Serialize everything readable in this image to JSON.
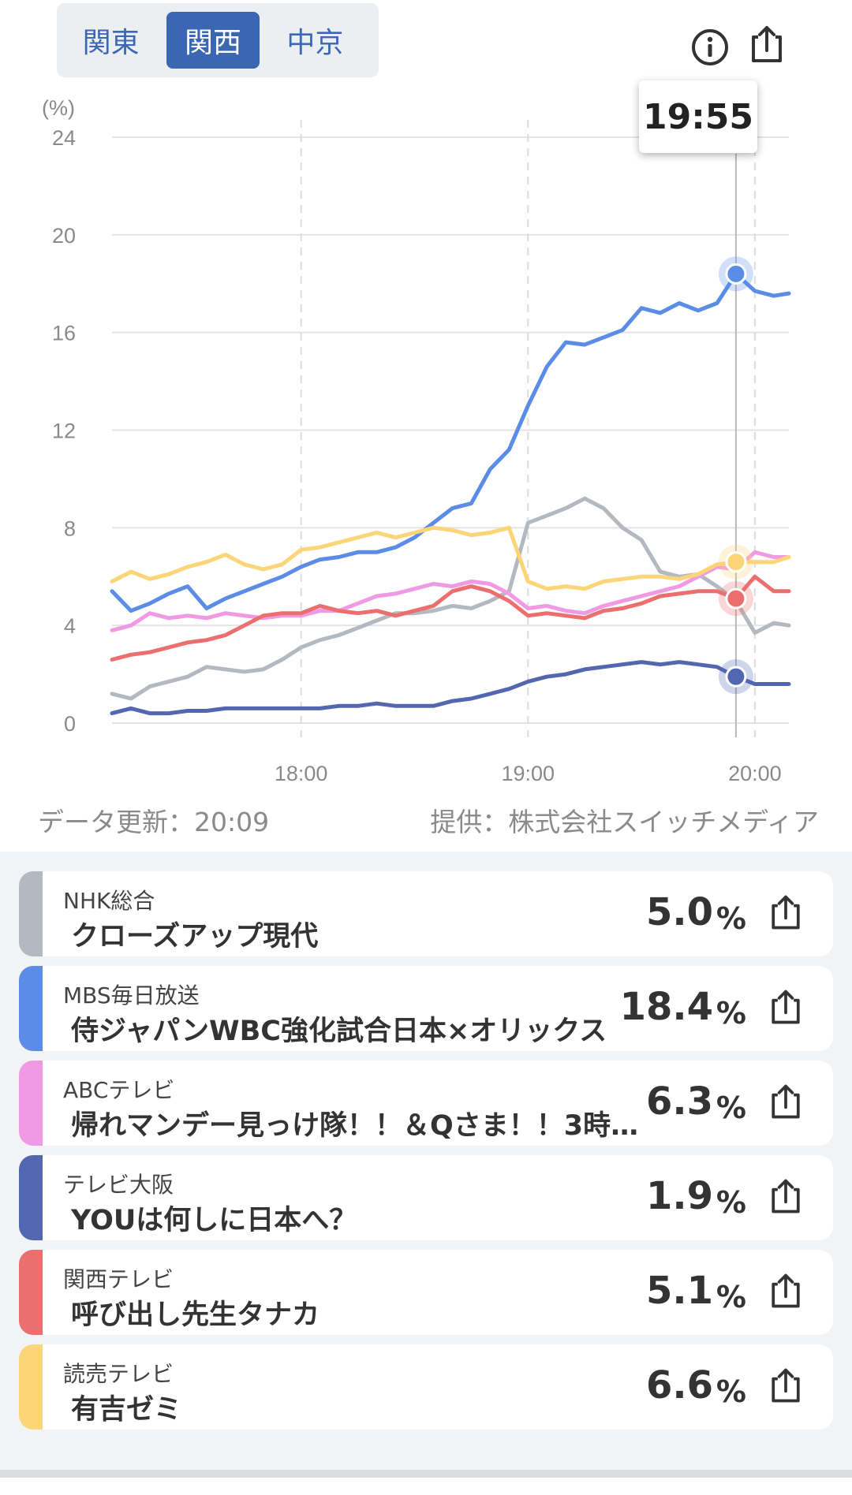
{
  "region_tabs": [
    {
      "label": "関東",
      "active": false
    },
    {
      "label": "関西",
      "active": true
    },
    {
      "label": "中京",
      "active": false
    }
  ],
  "icons": {
    "info": "info-icon",
    "share": "share-icon"
  },
  "tooltip_time": "19:55",
  "chart_data": {
    "type": "line",
    "ylabel": "(%)",
    "ylim": [
      0,
      24
    ],
    "y_ticks": [
      "0",
      "4",
      "8",
      "12",
      "16",
      "20",
      "24"
    ],
    "x_ticks": [
      "18:00",
      "19:00",
      "20:00"
    ],
    "x_start": "17:10",
    "x_end": "20:09",
    "cursor_time": "19:55",
    "series": [
      {
        "key": "nhk",
        "color": "#b4b9c1",
        "points": [
          [
            "17:10",
            1.2
          ],
          [
            "17:15",
            1.0
          ],
          [
            "17:20",
            1.5
          ],
          [
            "17:25",
            1.7
          ],
          [
            "17:30",
            1.9
          ],
          [
            "17:35",
            2.3
          ],
          [
            "17:40",
            2.2
          ],
          [
            "17:45",
            2.1
          ],
          [
            "17:50",
            2.2
          ],
          [
            "17:55",
            2.6
          ],
          [
            "18:00",
            3.1
          ],
          [
            "18:05",
            3.4
          ],
          [
            "18:10",
            3.6
          ],
          [
            "18:15",
            3.9
          ],
          [
            "18:20",
            4.2
          ],
          [
            "18:25",
            4.5
          ],
          [
            "18:30",
            4.5
          ],
          [
            "18:35",
            4.6
          ],
          [
            "18:40",
            4.8
          ],
          [
            "18:45",
            4.7
          ],
          [
            "18:50",
            5.0
          ],
          [
            "18:55",
            5.4
          ],
          [
            "19:00",
            8.2
          ],
          [
            "19:05",
            8.5
          ],
          [
            "19:10",
            8.8
          ],
          [
            "19:15",
            9.2
          ],
          [
            "19:20",
            8.8
          ],
          [
            "19:25",
            8.0
          ],
          [
            "19:30",
            7.5
          ],
          [
            "19:35",
            6.2
          ],
          [
            "19:40",
            6.0
          ],
          [
            "19:45",
            6.1
          ],
          [
            "19:50",
            5.6
          ],
          [
            "19:55",
            5.0
          ],
          [
            "20:00",
            3.7
          ],
          [
            "20:05",
            4.1
          ],
          [
            "20:09",
            4.0
          ]
        ]
      },
      {
        "key": "mbs",
        "color": "#5b8ce6",
        "points": [
          [
            "17:10",
            5.4
          ],
          [
            "17:15",
            4.6
          ],
          [
            "17:20",
            4.9
          ],
          [
            "17:25",
            5.3
          ],
          [
            "17:30",
            5.6
          ],
          [
            "17:35",
            4.7
          ],
          [
            "17:40",
            5.1
          ],
          [
            "17:45",
            5.4
          ],
          [
            "17:50",
            5.7
          ],
          [
            "17:55",
            6.0
          ],
          [
            "18:00",
            6.4
          ],
          [
            "18:05",
            6.7
          ],
          [
            "18:10",
            6.8
          ],
          [
            "18:15",
            7.0
          ],
          [
            "18:20",
            7.0
          ],
          [
            "18:25",
            7.2
          ],
          [
            "18:30",
            7.6
          ],
          [
            "18:35",
            8.2
          ],
          [
            "18:40",
            8.8
          ],
          [
            "18:45",
            9.0
          ],
          [
            "18:50",
            10.4
          ],
          [
            "18:55",
            11.2
          ],
          [
            "19:00",
            13.0
          ],
          [
            "19:05",
            14.6
          ],
          [
            "19:10",
            15.6
          ],
          [
            "19:15",
            15.5
          ],
          [
            "19:20",
            15.8
          ],
          [
            "19:25",
            16.1
          ],
          [
            "19:30",
            17.0
          ],
          [
            "19:35",
            16.8
          ],
          [
            "19:40",
            17.2
          ],
          [
            "19:45",
            16.9
          ],
          [
            "19:50",
            17.2
          ],
          [
            "19:55",
            18.4
          ],
          [
            "20:00",
            17.7
          ],
          [
            "20:05",
            17.5
          ],
          [
            "20:09",
            17.6
          ]
        ]
      },
      {
        "key": "abc",
        "color": "#f09ae3",
        "points": [
          [
            "17:10",
            3.8
          ],
          [
            "17:15",
            4.0
          ],
          [
            "17:20",
            4.5
          ],
          [
            "17:25",
            4.3
          ],
          [
            "17:30",
            4.4
          ],
          [
            "17:35",
            4.3
          ],
          [
            "17:40",
            4.5
          ],
          [
            "17:45",
            4.4
          ],
          [
            "17:50",
            4.3
          ],
          [
            "17:55",
            4.4
          ],
          [
            "18:00",
            4.4
          ],
          [
            "18:05",
            4.6
          ],
          [
            "18:10",
            4.6
          ],
          [
            "18:15",
            4.9
          ],
          [
            "18:20",
            5.2
          ],
          [
            "18:25",
            5.3
          ],
          [
            "18:30",
            5.5
          ],
          [
            "18:35",
            5.7
          ],
          [
            "18:40",
            5.6
          ],
          [
            "18:45",
            5.8
          ],
          [
            "18:50",
            5.7
          ],
          [
            "18:55",
            5.3
          ],
          [
            "19:00",
            4.7
          ],
          [
            "19:05",
            4.8
          ],
          [
            "19:10",
            4.6
          ],
          [
            "19:15",
            4.5
          ],
          [
            "19:20",
            4.8
          ],
          [
            "19:25",
            5.0
          ],
          [
            "19:30",
            5.2
          ],
          [
            "19:35",
            5.4
          ],
          [
            "19:40",
            5.6
          ],
          [
            "19:45",
            6.0
          ],
          [
            "19:50",
            6.4
          ],
          [
            "19:55",
            6.3
          ],
          [
            "20:00",
            7.0
          ],
          [
            "20:05",
            6.8
          ],
          [
            "20:09",
            6.8
          ]
        ]
      },
      {
        "key": "tvo",
        "color": "#5367b1",
        "points": [
          [
            "17:10",
            0.4
          ],
          [
            "17:15",
            0.6
          ],
          [
            "17:20",
            0.4
          ],
          [
            "17:25",
            0.4
          ],
          [
            "17:30",
            0.5
          ],
          [
            "17:35",
            0.5
          ],
          [
            "17:40",
            0.6
          ],
          [
            "17:45",
            0.6
          ],
          [
            "17:50",
            0.6
          ],
          [
            "17:55",
            0.6
          ],
          [
            "18:00",
            0.6
          ],
          [
            "18:05",
            0.6
          ],
          [
            "18:10",
            0.7
          ],
          [
            "18:15",
            0.7
          ],
          [
            "18:20",
            0.8
          ],
          [
            "18:25",
            0.7
          ],
          [
            "18:30",
            0.7
          ],
          [
            "18:35",
            0.7
          ],
          [
            "18:40",
            0.9
          ],
          [
            "18:45",
            1.0
          ],
          [
            "18:50",
            1.2
          ],
          [
            "18:55",
            1.4
          ],
          [
            "19:00",
            1.7
          ],
          [
            "19:05",
            1.9
          ],
          [
            "19:10",
            2.0
          ],
          [
            "19:15",
            2.2
          ],
          [
            "19:20",
            2.3
          ],
          [
            "19:25",
            2.4
          ],
          [
            "19:30",
            2.5
          ],
          [
            "19:35",
            2.4
          ],
          [
            "19:40",
            2.5
          ],
          [
            "19:45",
            2.4
          ],
          [
            "19:50",
            2.3
          ],
          [
            "19:55",
            1.9
          ],
          [
            "20:00",
            1.6
          ],
          [
            "20:05",
            1.6
          ],
          [
            "20:09",
            1.6
          ]
        ]
      },
      {
        "key": "ktv",
        "color": "#ec6f6f",
        "points": [
          [
            "17:10",
            2.6
          ],
          [
            "17:15",
            2.8
          ],
          [
            "17:20",
            2.9
          ],
          [
            "17:25",
            3.1
          ],
          [
            "17:30",
            3.3
          ],
          [
            "17:35",
            3.4
          ],
          [
            "17:40",
            3.6
          ],
          [
            "17:45",
            4.0
          ],
          [
            "17:50",
            4.4
          ],
          [
            "17:55",
            4.5
          ],
          [
            "18:00",
            4.5
          ],
          [
            "18:05",
            4.8
          ],
          [
            "18:10",
            4.6
          ],
          [
            "18:15",
            4.5
          ],
          [
            "18:20",
            4.6
          ],
          [
            "18:25",
            4.4
          ],
          [
            "18:30",
            4.6
          ],
          [
            "18:35",
            4.8
          ],
          [
            "18:40",
            5.4
          ],
          [
            "18:45",
            5.6
          ],
          [
            "18:50",
            5.4
          ],
          [
            "18:55",
            5.0
          ],
          [
            "19:00",
            4.4
          ],
          [
            "19:05",
            4.5
          ],
          [
            "19:10",
            4.4
          ],
          [
            "19:15",
            4.3
          ],
          [
            "19:20",
            4.6
          ],
          [
            "19:25",
            4.7
          ],
          [
            "19:30",
            4.9
          ],
          [
            "19:35",
            5.2
          ],
          [
            "19:40",
            5.3
          ],
          [
            "19:45",
            5.4
          ],
          [
            "19:50",
            5.4
          ],
          [
            "19:55",
            5.1
          ],
          [
            "20:00",
            6.0
          ],
          [
            "20:05",
            5.4
          ],
          [
            "20:09",
            5.4
          ]
        ]
      },
      {
        "key": "ytv",
        "color": "#fbd577",
        "points": [
          [
            "17:10",
            5.8
          ],
          [
            "17:15",
            6.2
          ],
          [
            "17:20",
            5.9
          ],
          [
            "17:25",
            6.1
          ],
          [
            "17:30",
            6.4
          ],
          [
            "17:35",
            6.6
          ],
          [
            "17:40",
            6.9
          ],
          [
            "17:45",
            6.5
          ],
          [
            "17:50",
            6.3
          ],
          [
            "17:55",
            6.5
          ],
          [
            "18:00",
            7.1
          ],
          [
            "18:05",
            7.2
          ],
          [
            "18:10",
            7.4
          ],
          [
            "18:15",
            7.6
          ],
          [
            "18:20",
            7.8
          ],
          [
            "18:25",
            7.6
          ],
          [
            "18:30",
            7.8
          ],
          [
            "18:35",
            8.0
          ],
          [
            "18:40",
            7.9
          ],
          [
            "18:45",
            7.7
          ],
          [
            "18:50",
            7.8
          ],
          [
            "18:55",
            8.0
          ],
          [
            "19:00",
            5.8
          ],
          [
            "19:05",
            5.5
          ],
          [
            "19:10",
            5.6
          ],
          [
            "19:15",
            5.5
          ],
          [
            "19:20",
            5.8
          ],
          [
            "19:25",
            5.9
          ],
          [
            "19:30",
            6.0
          ],
          [
            "19:35",
            6.0
          ],
          [
            "19:40",
            5.9
          ],
          [
            "19:45",
            6.1
          ],
          [
            "19:50",
            6.5
          ],
          [
            "19:55",
            6.6
          ],
          [
            "20:00",
            6.6
          ],
          [
            "20:05",
            6.6
          ],
          [
            "20:09",
            6.8
          ]
        ]
      }
    ]
  },
  "meta": {
    "update": "データ更新：20:09",
    "provider": "提供：株式会社スイッチメディア"
  },
  "channels": [
    {
      "station": "NHK総合",
      "title": "クローズアップ現代",
      "value": "5.0",
      "unit": "%",
      "color": "#b4b9c1"
    },
    {
      "station": "MBS毎日放送",
      "title": "侍ジャパンWBC強化試合日本×オリックス",
      "value": "18.4",
      "unit": "%",
      "color": "#5b8ce6"
    },
    {
      "station": "ABCテレビ",
      "title": "帰れマンデー見っけ隊！！＆Qさま！！3時…",
      "value": "6.3",
      "unit": "%",
      "color": "#f09ae3"
    },
    {
      "station": "テレビ大阪",
      "title": "YOUは何しに日本へ？",
      "value": "1.9",
      "unit": "%",
      "color": "#5367b1"
    },
    {
      "station": "関西テレビ",
      "title": "呼び出し先生タナカ",
      "value": "5.1",
      "unit": "%",
      "color": "#ec6f6f"
    },
    {
      "station": "読売テレビ",
      "title": "有吉ゼミ",
      "value": "6.6",
      "unit": "%",
      "color": "#fbd577"
    }
  ]
}
